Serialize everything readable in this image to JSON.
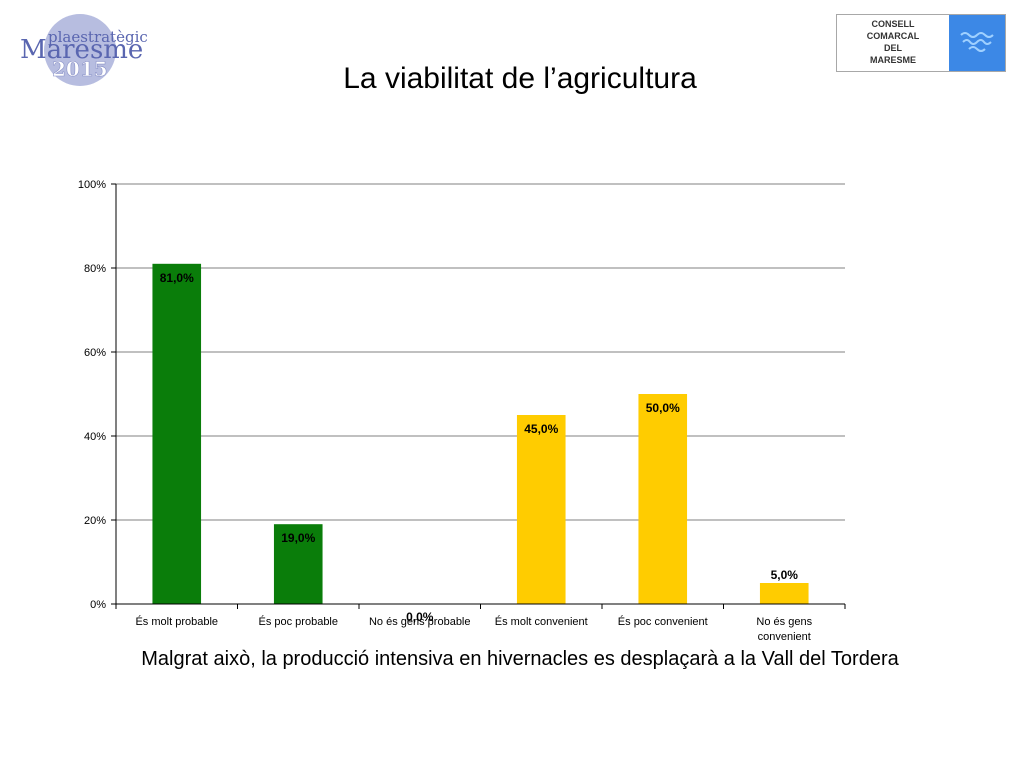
{
  "header": {
    "title": "La viabilitat de l’agricultura",
    "logo_left": {
      "line1": "plaestratègic",
      "line2": "Maresme",
      "line3": "2015"
    },
    "logo_right": {
      "lines": [
        "CONSELL",
        "COMARCAL",
        "DEL",
        "MARESME"
      ],
      "icon": "waves-icon"
    }
  },
  "footer": {
    "subtitle": "Malgrat això, la producció intensiva en hivernacles es desplaçarà a la Vall del Tordera"
  },
  "chart_data": {
    "type": "bar",
    "title": "",
    "xlabel": "",
    "ylabel": "",
    "ylim": [
      0,
      100
    ],
    "y_ticks": [
      "0%",
      "20%",
      "40%",
      "60%",
      "80%",
      "100%"
    ],
    "grid": true,
    "legend": "none",
    "categories": [
      [
        "És molt probable"
      ],
      [
        "És poc probable"
      ],
      [
        "No és gens probable"
      ],
      [
        "És molt convenient"
      ],
      [
        "És poc convenient"
      ],
      [
        "No és gens",
        "convenient"
      ]
    ],
    "values": [
      81.0,
      19.0,
      0.0,
      45.0,
      50.0,
      5.0
    ],
    "data_labels": [
      "81,0%",
      "19,0%",
      "0,0%",
      "45,0%",
      "50,0%",
      "5,0%"
    ],
    "colors": [
      "#0a7d0a",
      "#0a7d0a",
      "#0a7d0a",
      "#ffcc00",
      "#ffcc00",
      "#ffcc00"
    ]
  }
}
